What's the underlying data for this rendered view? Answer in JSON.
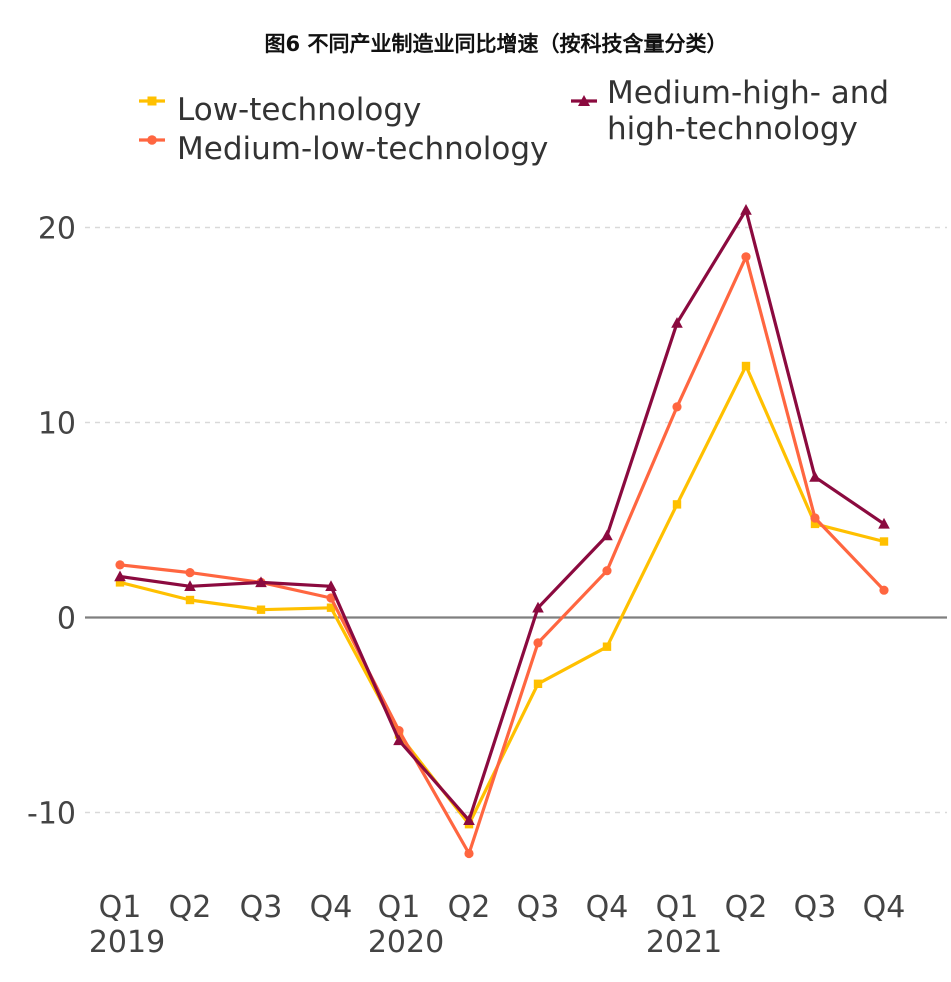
{
  "chart_data": {
    "type": "line",
    "title": "图6 不同产业制造业同比增速（按科技含量分类）",
    "xlabel": "",
    "ylabel": "",
    "ylim": [
      -13,
      22
    ],
    "yticks": [
      20,
      10,
      0,
      -10
    ],
    "ytick_labels": [
      "20",
      "10",
      "0",
      "-10"
    ],
    "grid": true,
    "legend_position": "top",
    "x_quarters": [
      "Q1",
      "Q2",
      "Q3",
      "Q4",
      "Q1",
      "Q2",
      "Q3",
      "Q4",
      "Q1",
      "Q2",
      "Q3",
      "Q4"
    ],
    "x_years": [
      {
        "label": "2019",
        "index": 0
      },
      {
        "label": "2020",
        "index": 4
      },
      {
        "label": "2021",
        "index": 8
      }
    ],
    "series": [
      {
        "name": "Low-technology",
        "color": "#ffc000",
        "marker": "square",
        "values": [
          1.8,
          0.9,
          0.4,
          0.5,
          -6.0,
          -10.6,
          -3.4,
          -1.5,
          5.8,
          12.9,
          4.8,
          3.9
        ]
      },
      {
        "name": "Medium-low-technology",
        "color": "#ff6640",
        "marker": "circle",
        "values": [
          2.7,
          2.3,
          1.8,
          1.0,
          -5.8,
          -12.1,
          -1.3,
          2.4,
          10.8,
          18.5,
          5.1,
          1.4
        ]
      },
      {
        "name": "Medium-high- and high-technology",
        "legend_lines": [
          "Medium-high- and",
          "high-technology"
        ],
        "color": "#8b0a3f",
        "marker": "triangle",
        "values": [
          2.1,
          1.6,
          1.8,
          1.6,
          -6.3,
          -10.4,
          0.5,
          4.2,
          15.1,
          20.9,
          7.2,
          4.8
        ]
      }
    ]
  }
}
